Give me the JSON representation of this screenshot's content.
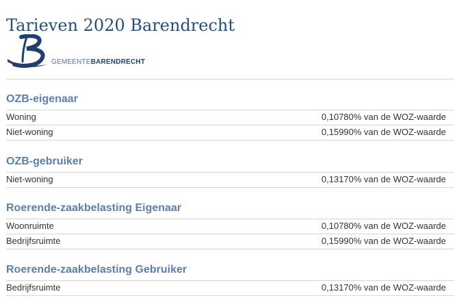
{
  "title": "Tarieven 2020 Barendrecht",
  "logo": {
    "wordmark_light": "GEMEENTE",
    "wordmark_bold": "BARENDRECHT"
  },
  "sections": [
    {
      "heading": "OZB-eigenaar",
      "rows": [
        {
          "label": "Woning",
          "value": "0,10780% van de WOZ-waarde"
        },
        {
          "label": "Niet-woning",
          "value": "0,15990% van de WOZ-waarde"
        }
      ]
    },
    {
      "heading": "OZB-gebruiker",
      "rows": [
        {
          "label": "Niet-woning",
          "value": "0,13170% van de WOZ-waarde"
        }
      ]
    },
    {
      "heading": "Roerende-zaakbelasting Eigenaar",
      "rows": [
        {
          "label": "Woonruimte",
          "value": "0,10780% van de WOZ-waarde"
        },
        {
          "label": "Bedrijfsruimte",
          "value": "0,15990% van de WOZ-waarde"
        }
      ]
    },
    {
      "heading": "Roerende-zaakbelasting Gebruiker",
      "rows": [
        {
          "label": "Bedrijfsruimte",
          "value": "0,13170% van de WOZ-waarde"
        }
      ]
    }
  ]
}
